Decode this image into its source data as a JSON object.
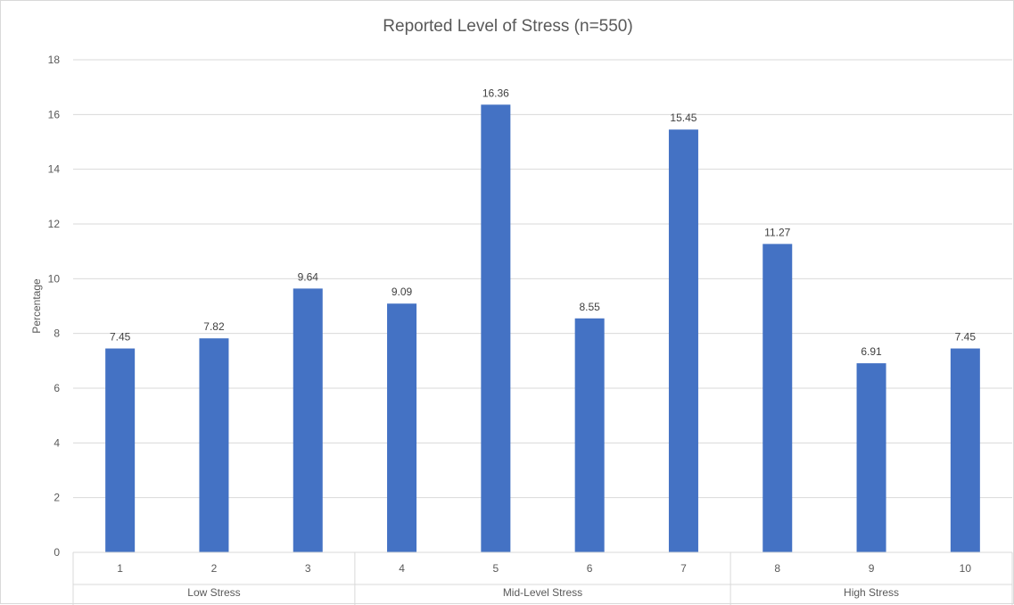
{
  "chart_data": {
    "type": "bar",
    "title": "Reported Level of Stress (n=550)",
    "xlabel": "",
    "ylabel": "Percentage",
    "ylim": [
      0,
      18
    ],
    "ytick_step": 2,
    "grid": true,
    "categories": [
      "1",
      "2",
      "3",
      "4",
      "5",
      "6",
      "7",
      "8",
      "9",
      "10"
    ],
    "values": [
      7.45,
      7.82,
      9.64,
      9.09,
      16.36,
      8.55,
      15.45,
      11.27,
      6.91,
      7.45
    ],
    "data_labels": [
      "7.45",
      "7.82",
      "9.64",
      "9.09",
      "16.36",
      "8.55",
      "15.45",
      "11.27",
      "6.91",
      "7.45"
    ],
    "groups": [
      {
        "label": "Low Stress",
        "categories": [
          "1",
          "2",
          "3"
        ]
      },
      {
        "label": "Mid-Level Stress",
        "categories": [
          "4",
          "5",
          "6",
          "7"
        ]
      },
      {
        "label": "High Stress",
        "categories": [
          "8",
          "9",
          "10"
        ]
      }
    ],
    "colors": {
      "bar": "#4472C4",
      "grid": "#d9d9d9",
      "text": "#595959"
    }
  }
}
